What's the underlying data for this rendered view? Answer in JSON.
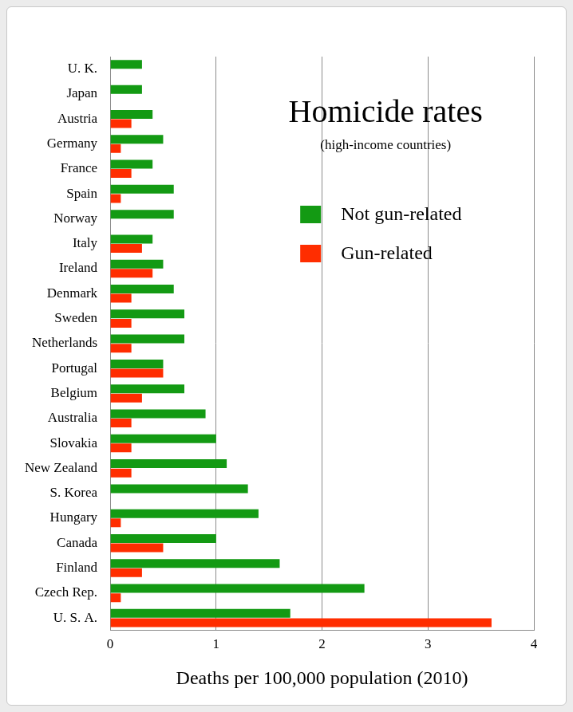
{
  "chart_data": {
    "type": "bar",
    "orientation": "horizontal",
    "title": "Homicide rates",
    "subtitle": "(high-income countries)",
    "x_label": "Deaths per 100,000 population (2010)",
    "categories": [
      "U. K.",
      "Japan",
      "Austria",
      "Germany",
      "France",
      "Spain",
      "Norway",
      "Italy",
      "Ireland",
      "Denmark",
      "Sweden",
      "Netherlands",
      "Portugal",
      "Belgium",
      "Australia",
      "Slovakia",
      "New Zealand",
      "S. Korea",
      "Hungary",
      "Canada",
      "Finland",
      "Czech Rep.",
      "U. S. A."
    ],
    "series": [
      {
        "name": "Not gun-related",
        "color": "#139a13",
        "values": [
          0.3,
          0.3,
          0.4,
          0.5,
          0.4,
          0.6,
          0.6,
          0.4,
          0.5,
          0.6,
          0.7,
          0.7,
          0.5,
          0.7,
          0.9,
          1.0,
          1.1,
          1.3,
          1.4,
          1.0,
          1.6,
          2.4,
          1.7
        ]
      },
      {
        "name": "Gun-related",
        "color": "#ff2d00",
        "values": [
          0,
          0,
          0.2,
          0.1,
          0.2,
          0.1,
          0,
          0.3,
          0.4,
          0.2,
          0.2,
          0.2,
          0.5,
          0.3,
          0.2,
          0.2,
          0.2,
          0,
          0.1,
          0.5,
          0.3,
          0.1,
          3.6
        ]
      }
    ],
    "xlim": [
      0,
      4
    ],
    "xticks": [
      0,
      1,
      2,
      3,
      4
    ],
    "grid": true,
    "legend": "upper right"
  }
}
